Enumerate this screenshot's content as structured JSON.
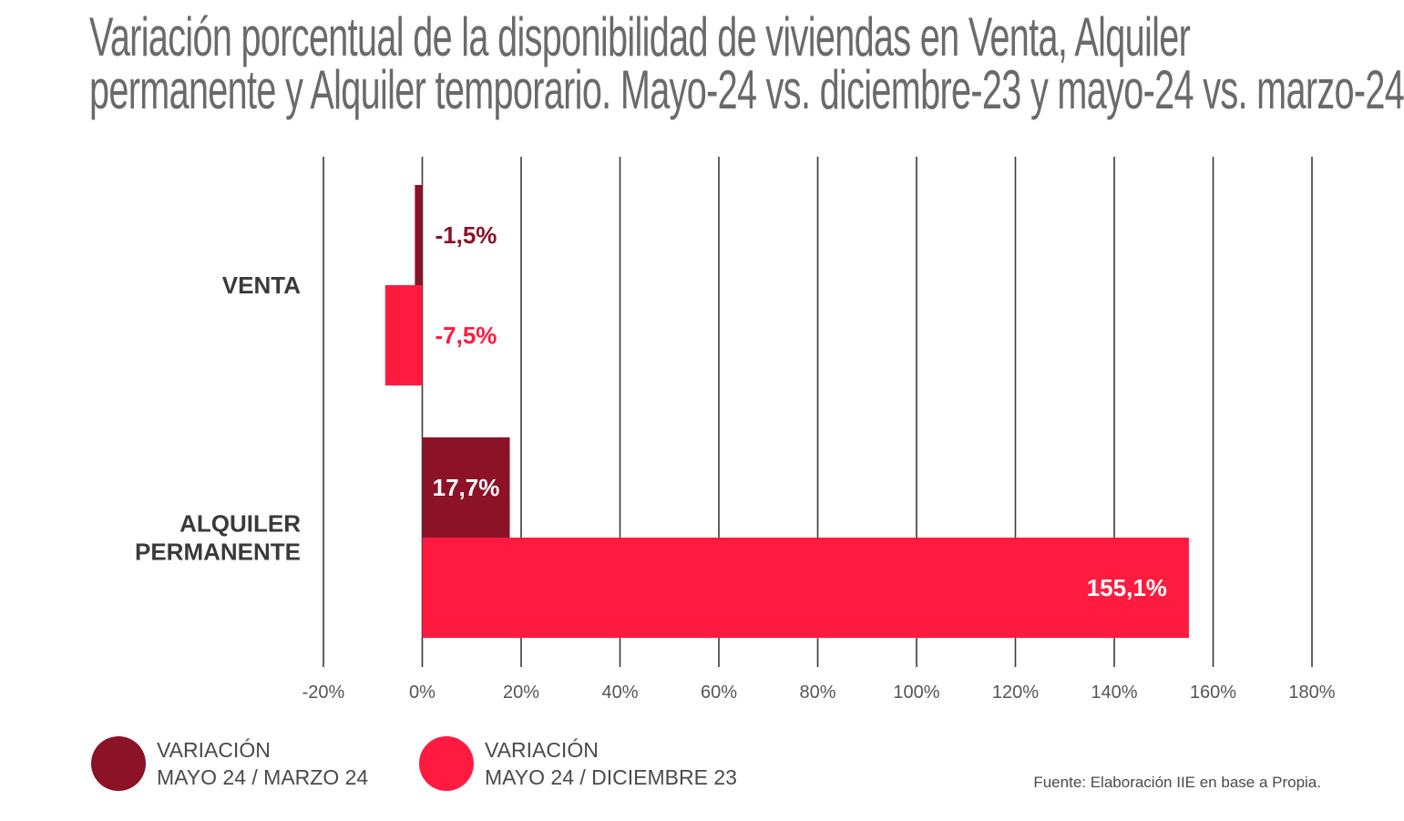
{
  "chart_data": {
    "type": "bar",
    "orientation": "horizontal",
    "title_lines": [
      "Variación porcentual de la disponibilidad de viviendas en Venta, Alquiler",
      "permanente y Alquiler temporario. Mayo-24 vs. diciembre-23 y mayo-24 vs. marzo-24"
    ],
    "categories": [
      {
        "lines": [
          "VENTA"
        ]
      },
      {
        "lines": [
          "ALQUILER",
          "PERMANENTE"
        ]
      }
    ],
    "series": [
      {
        "legend_lines": [
          "VARIACIÓN",
          "MAYO 24 / MARZO 24"
        ],
        "color": "#8c1228",
        "values": [
          -1.5,
          17.7
        ],
        "labels": [
          "-1,5%",
          "17,7%"
        ],
        "label_colors": [
          "#8c1228",
          "#ffffff"
        ]
      },
      {
        "legend_lines": [
          "VARIACIÓN",
          "MAYO 24 / DICIEMBRE 23"
        ],
        "color": "#ff1a40",
        "values": [
          -7.5,
          155.1
        ],
        "labels": [
          "-7,5%",
          "155,1%"
        ],
        "label_colors": [
          "#ff1a40",
          "#ffffff"
        ]
      }
    ],
    "xlim": [
      -20,
      180
    ],
    "x_ticks": [
      -20,
      0,
      20,
      40,
      60,
      80,
      100,
      120,
      140,
      160,
      180
    ],
    "x_tick_labels": [
      "-20%",
      "0%",
      "20%",
      "40%",
      "60%",
      "80%",
      "100%",
      "120%",
      "140%",
      "160%",
      "180%"
    ],
    "grid": true,
    "legend_position": "bottom-left"
  },
  "source": "Fuente: Elaboración IIE en base a Propia."
}
